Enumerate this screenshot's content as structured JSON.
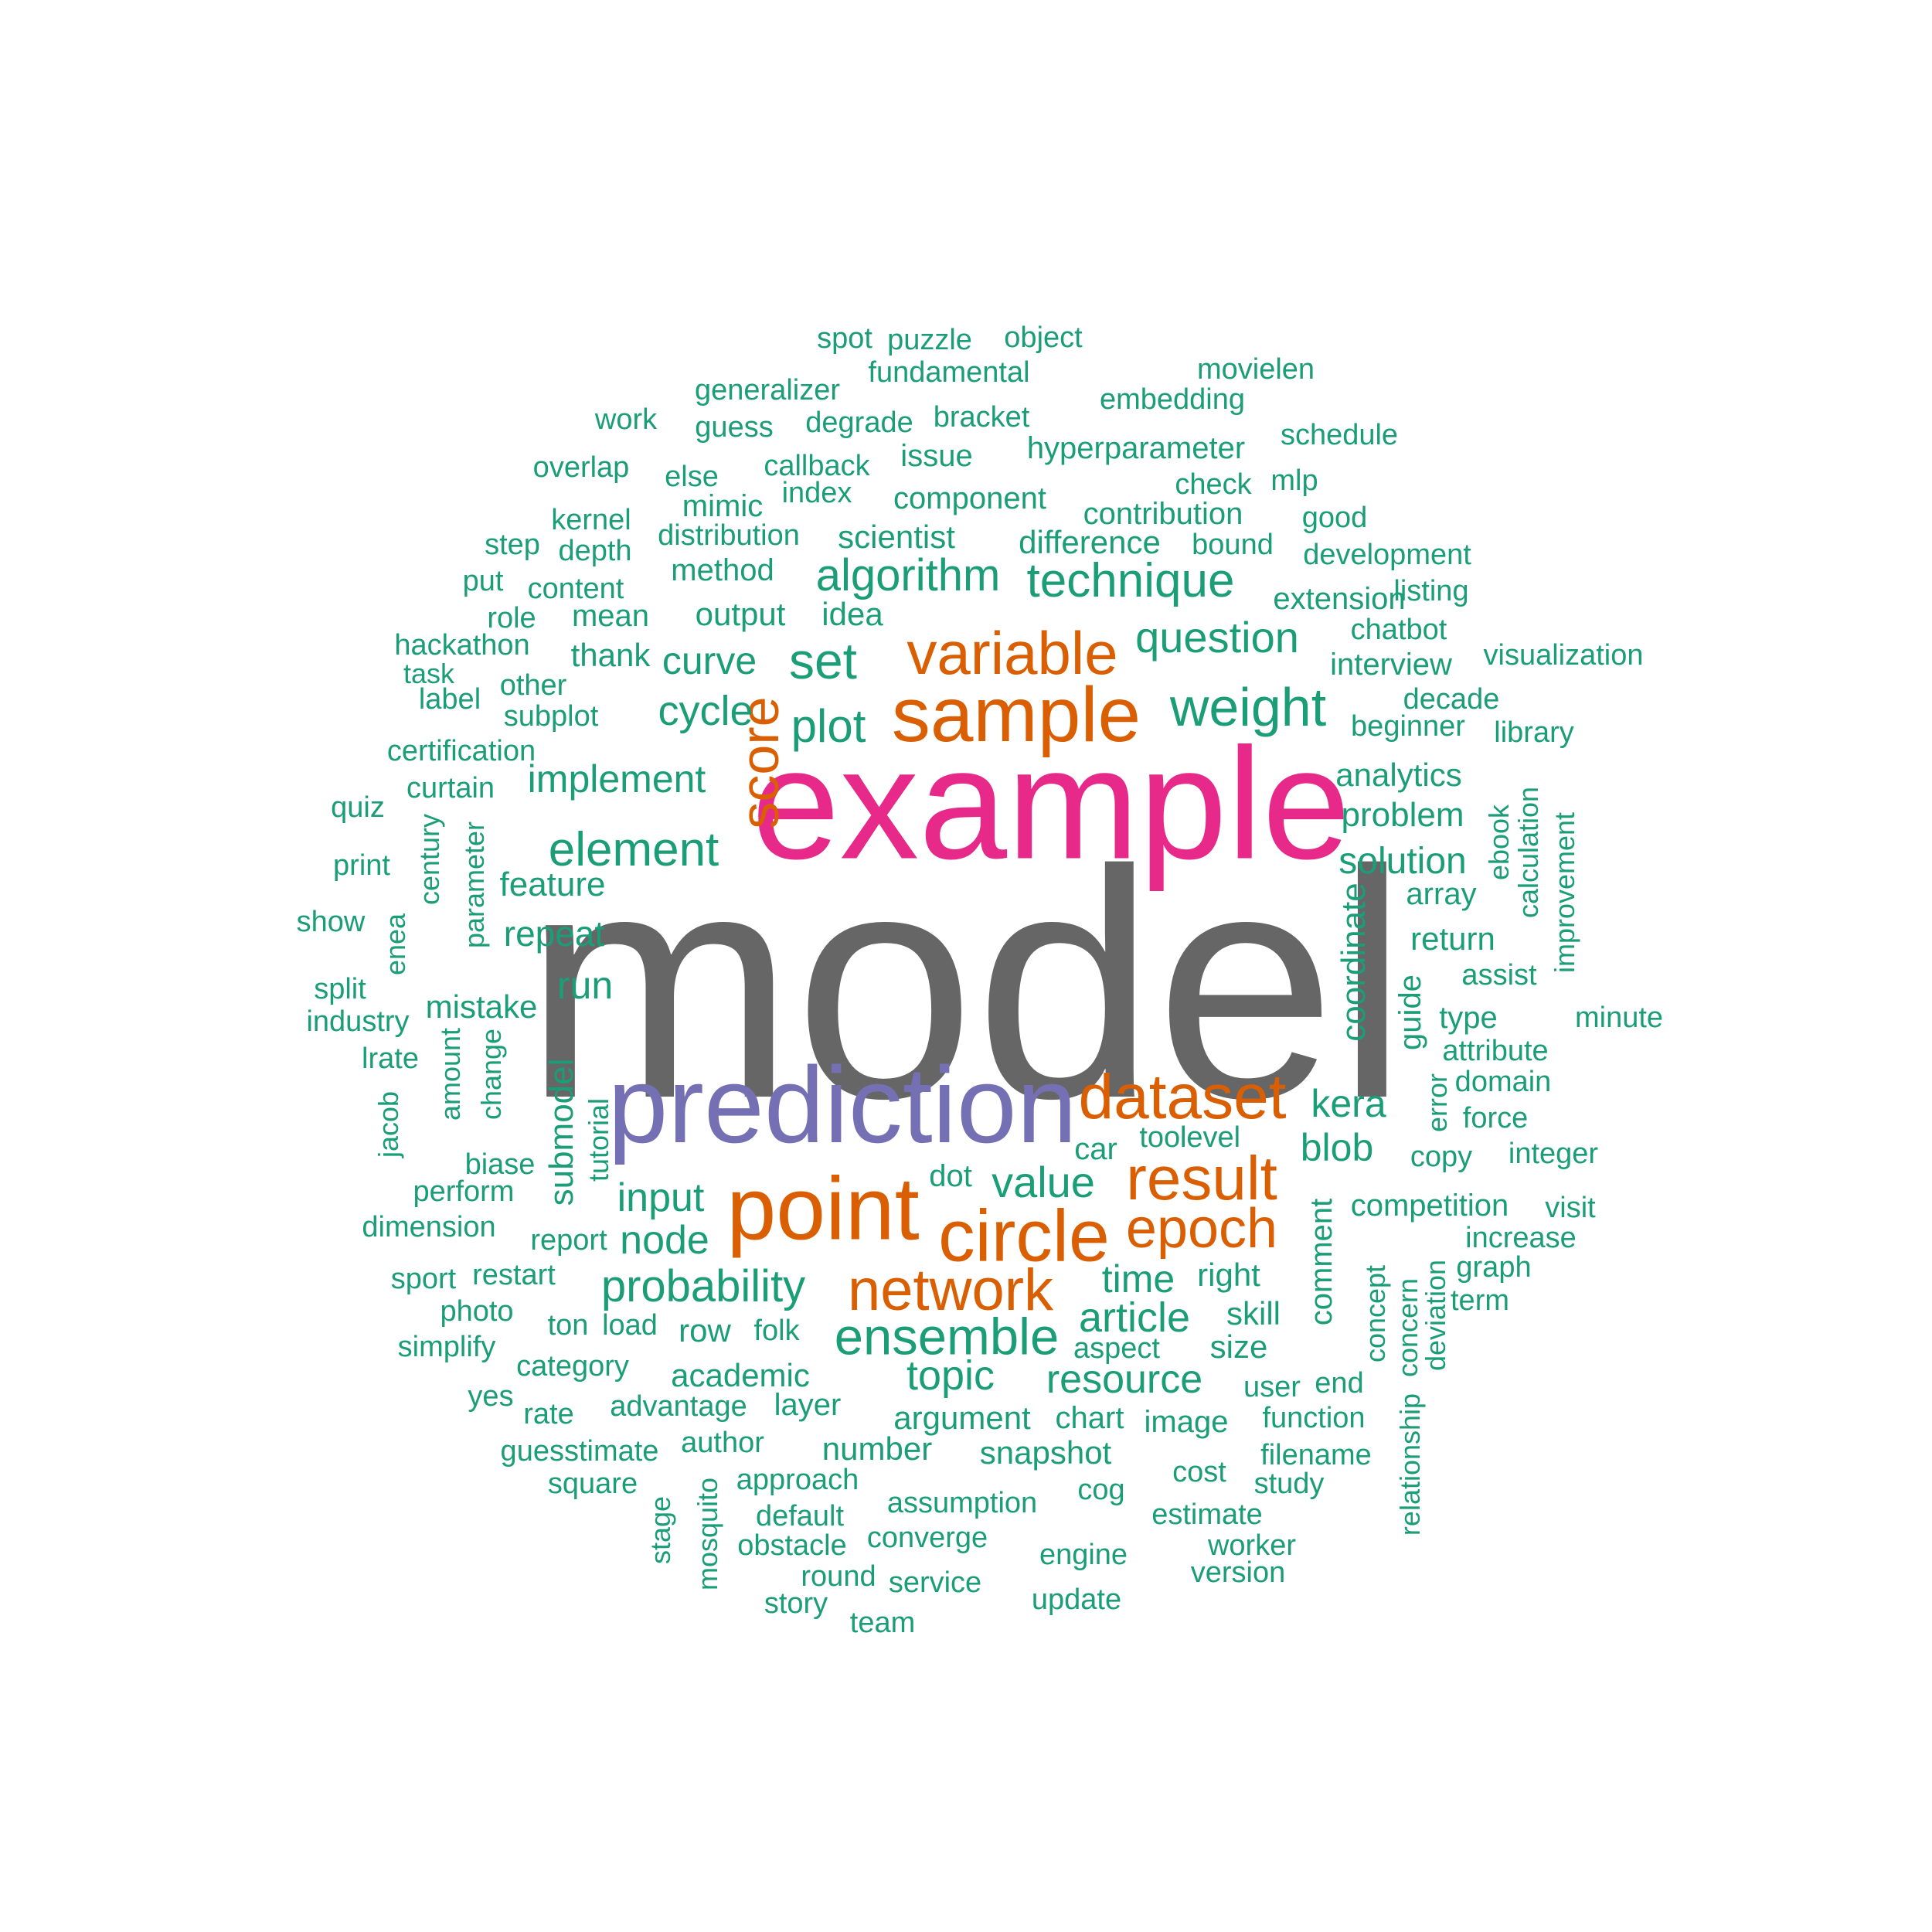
{
  "palette": {
    "giant": "#666666",
    "primary": "#E7298A",
    "secondary": "#7570B3",
    "accent": "#D95F02",
    "base": "#1B9E77"
  },
  "words": [
    {
      "text": "model",
      "color": "giant"
    },
    {
      "text": "example",
      "color": "primary"
    },
    {
      "text": "prediction",
      "color": "secondary"
    },
    {
      "text": "point",
      "color": "accent"
    },
    {
      "text": "sample",
      "color": "accent"
    },
    {
      "text": "dataset",
      "color": "accent"
    },
    {
      "text": "circle",
      "color": "accent"
    },
    {
      "text": "variable",
      "color": "accent"
    },
    {
      "text": "result",
      "color": "accent"
    },
    {
      "text": "network",
      "color": "accent"
    },
    {
      "text": "epoch",
      "color": "accent"
    },
    {
      "text": "score",
      "color": "accent"
    },
    {
      "text": "ensemble",
      "color": "base"
    },
    {
      "text": "weight",
      "color": "base"
    },
    {
      "text": "element",
      "color": "base"
    },
    {
      "text": "technique",
      "color": "base"
    },
    {
      "text": "set",
      "color": "base"
    },
    {
      "text": "probability",
      "color": "base"
    },
    {
      "text": "plot",
      "color": "base"
    },
    {
      "text": "algorithm",
      "color": "base"
    },
    {
      "text": "question",
      "color": "base"
    },
    {
      "text": "value",
      "color": "base"
    },
    {
      "text": "article",
      "color": "base"
    },
    {
      "text": "time",
      "color": "base"
    },
    {
      "text": "topic",
      "color": "base"
    },
    {
      "text": "resource",
      "color": "base"
    },
    {
      "text": "implement",
      "color": "base"
    },
    {
      "text": "cycle",
      "color": "base"
    },
    {
      "text": "input",
      "color": "base"
    },
    {
      "text": "blob",
      "color": "base"
    },
    {
      "text": "kera",
      "color": "base"
    },
    {
      "text": "solution",
      "color": "base"
    },
    {
      "text": "node",
      "color": "base"
    },
    {
      "text": "run",
      "color": "base"
    },
    {
      "text": "curve",
      "color": "base"
    },
    {
      "text": "coordinate",
      "color": "base"
    },
    {
      "text": "repeat",
      "color": "base"
    },
    {
      "text": "submodel",
      "color": "base"
    },
    {
      "text": "problem",
      "color": "base"
    },
    {
      "text": "feature",
      "color": "base"
    },
    {
      "text": "analytics",
      "color": "base"
    },
    {
      "text": "return",
      "color": "base"
    },
    {
      "text": "mistake",
      "color": "base"
    },
    {
      "text": "snapshot",
      "color": "base"
    },
    {
      "text": "argument",
      "color": "base"
    },
    {
      "text": "difference",
      "color": "base"
    },
    {
      "text": "academic",
      "color": "base"
    },
    {
      "text": "number",
      "color": "base"
    },
    {
      "text": "competition",
      "color": "base"
    },
    {
      "text": "row",
      "color": "base"
    },
    {
      "text": "right",
      "color": "base"
    },
    {
      "text": "size",
      "color": "base"
    },
    {
      "text": "skill",
      "color": "base"
    },
    {
      "text": "component",
      "color": "base"
    },
    {
      "text": "scientist",
      "color": "base"
    },
    {
      "text": "method",
      "color": "base"
    },
    {
      "text": "output",
      "color": "base"
    },
    {
      "text": "idea",
      "color": "base"
    },
    {
      "text": "chart",
      "color": "base"
    },
    {
      "text": "image",
      "color": "base"
    },
    {
      "text": "layer",
      "color": "base"
    },
    {
      "text": "comment",
      "color": "base"
    },
    {
      "text": "guide",
      "color": "base"
    },
    {
      "text": "hyperparameter",
      "color": "base"
    },
    {
      "text": "contribution",
      "color": "base"
    },
    {
      "text": "distribution",
      "color": "base"
    },
    {
      "text": "array",
      "color": "base"
    },
    {
      "text": "dot",
      "color": "base"
    },
    {
      "text": "car",
      "color": "base"
    },
    {
      "text": "tool",
      "color": "base"
    },
    {
      "text": "level",
      "color": "base"
    },
    {
      "text": "thank",
      "color": "base"
    },
    {
      "text": "mean",
      "color": "base"
    },
    {
      "text": "mimic",
      "color": "base"
    },
    {
      "text": "index",
      "color": "base"
    },
    {
      "text": "interview",
      "color": "base"
    },
    {
      "text": "extension",
      "color": "base"
    },
    {
      "text": "development",
      "color": "base"
    },
    {
      "text": "fundamental",
      "color": "base"
    },
    {
      "text": "generalizer",
      "color": "base"
    },
    {
      "text": "degrade",
      "color": "base"
    },
    {
      "text": "bracket",
      "color": "base"
    },
    {
      "text": "embedding",
      "color": "base"
    },
    {
      "text": "movielen",
      "color": "base"
    },
    {
      "text": "callback",
      "color": "base"
    },
    {
      "text": "issue",
      "color": "base"
    },
    {
      "text": "guess",
      "color": "base"
    },
    {
      "text": "else",
      "color": "base"
    },
    {
      "text": "overlap",
      "color": "base"
    },
    {
      "text": "work",
      "color": "base"
    },
    {
      "text": "schedule",
      "color": "base"
    },
    {
      "text": "check",
      "color": "base"
    },
    {
      "text": "mlp",
      "color": "base"
    },
    {
      "text": "good",
      "color": "base"
    },
    {
      "text": "bound",
      "color": "base"
    },
    {
      "text": "listing",
      "color": "base"
    },
    {
      "text": "chatbot",
      "color": "base"
    },
    {
      "text": "visualization",
      "color": "base"
    },
    {
      "text": "decade",
      "color": "base"
    },
    {
      "text": "beginner",
      "color": "base"
    },
    {
      "text": "library",
      "color": "base"
    },
    {
      "text": "spot",
      "color": "base"
    },
    {
      "text": "puzzle",
      "color": "base"
    },
    {
      "text": "object",
      "color": "base"
    },
    {
      "text": "kernel",
      "color": "base"
    },
    {
      "text": "step",
      "color": "base"
    },
    {
      "text": "depth",
      "color": "base"
    },
    {
      "text": "put",
      "color": "base"
    },
    {
      "text": "content",
      "color": "base"
    },
    {
      "text": "role",
      "color": "base"
    },
    {
      "text": "hackathon",
      "color": "base"
    },
    {
      "text": "task",
      "color": "base"
    },
    {
      "text": "other",
      "color": "base"
    },
    {
      "text": "label",
      "color": "base"
    },
    {
      "text": "subplot",
      "color": "base"
    },
    {
      "text": "certification",
      "color": "base"
    },
    {
      "text": "curtain",
      "color": "base"
    },
    {
      "text": "quiz",
      "color": "base"
    },
    {
      "text": "century",
      "color": "base"
    },
    {
      "text": "parameter",
      "color": "base"
    },
    {
      "text": "print",
      "color": "base"
    },
    {
      "text": "show",
      "color": "base"
    },
    {
      "text": "enea",
      "color": "base"
    },
    {
      "text": "split",
      "color": "base"
    },
    {
      "text": "industry",
      "color": "base"
    },
    {
      "text": "amount",
      "color": "base"
    },
    {
      "text": "change",
      "color": "base"
    },
    {
      "text": "lrate",
      "color": "base"
    },
    {
      "text": "jacob",
      "color": "base"
    },
    {
      "text": "tutorial",
      "color": "base"
    },
    {
      "text": "biase",
      "color": "base"
    },
    {
      "text": "perform",
      "color": "base"
    },
    {
      "text": "dimension",
      "color": "base"
    },
    {
      "text": "report",
      "color": "base"
    },
    {
      "text": "sport",
      "color": "base"
    },
    {
      "text": "restart",
      "color": "base"
    },
    {
      "text": "photo",
      "color": "base"
    },
    {
      "text": "simplify",
      "color": "base"
    },
    {
      "text": "ton",
      "color": "base"
    },
    {
      "text": "load",
      "color": "base"
    },
    {
      "text": "folk",
      "color": "base"
    },
    {
      "text": "category",
      "color": "base"
    },
    {
      "text": "yes",
      "color": "base"
    },
    {
      "text": "rate",
      "color": "base"
    },
    {
      "text": "advantage",
      "color": "base"
    },
    {
      "text": "guesstimate",
      "color": "base"
    },
    {
      "text": "author",
      "color": "base"
    },
    {
      "text": "square",
      "color": "base"
    },
    {
      "text": "approach",
      "color": "base"
    },
    {
      "text": "stage",
      "color": "base"
    },
    {
      "text": "mosquito",
      "color": "base"
    },
    {
      "text": "default",
      "color": "base"
    },
    {
      "text": "obstacle",
      "color": "base"
    },
    {
      "text": "assumption",
      "color": "base"
    },
    {
      "text": "converge",
      "color": "base"
    },
    {
      "text": "round",
      "color": "base"
    },
    {
      "text": "service",
      "color": "base"
    },
    {
      "text": "story",
      "color": "base"
    },
    {
      "text": "team",
      "color": "base"
    },
    {
      "text": "update",
      "color": "base"
    },
    {
      "text": "engine",
      "color": "base"
    },
    {
      "text": "cog",
      "color": "base"
    },
    {
      "text": "cost",
      "color": "base"
    },
    {
      "text": "estimate",
      "color": "base"
    },
    {
      "text": "worker",
      "color": "base"
    },
    {
      "text": "version",
      "color": "base"
    },
    {
      "text": "study",
      "color": "base"
    },
    {
      "text": "filename",
      "color": "base"
    },
    {
      "text": "function",
      "color": "base"
    },
    {
      "text": "user",
      "color": "base"
    },
    {
      "text": "end",
      "color": "base"
    },
    {
      "text": "aspect",
      "color": "base"
    },
    {
      "text": "relationship",
      "color": "base"
    },
    {
      "text": "concept",
      "color": "base"
    },
    {
      "text": "concern",
      "color": "base"
    },
    {
      "text": "deviation",
      "color": "base"
    },
    {
      "text": "term",
      "color": "base"
    },
    {
      "text": "graph",
      "color": "base"
    },
    {
      "text": "increase",
      "color": "base"
    },
    {
      "text": "visit",
      "color": "base"
    },
    {
      "text": "integer",
      "color": "base"
    },
    {
      "text": "copy",
      "color": "base"
    },
    {
      "text": "force",
      "color": "base"
    },
    {
      "text": "error",
      "color": "base"
    },
    {
      "text": "domain",
      "color": "base"
    },
    {
      "text": "attribute",
      "color": "base"
    },
    {
      "text": "type",
      "color": "base"
    },
    {
      "text": "minute",
      "color": "base"
    },
    {
      "text": "assist",
      "color": "base"
    },
    {
      "text": "improvement",
      "color": "base"
    },
    {
      "text": "calculation",
      "color": "base"
    },
    {
      "text": "ebook",
      "color": "base"
    }
  ]
}
